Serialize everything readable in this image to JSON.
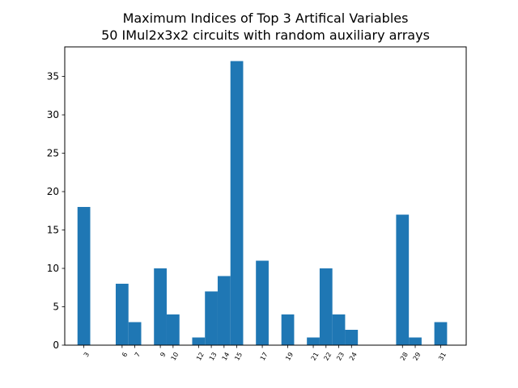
{
  "chart_data": {
    "type": "bar",
    "title_lines": [
      "Maximum Indices of Top 3 Artifical Variables",
      "50 IMul2x3x2 circuits with random auxiliary arrays"
    ],
    "xlabel": "",
    "ylabel": "",
    "x_tick_labels": [
      "3",
      "6",
      "7",
      "9",
      "10",
      "12",
      "13",
      "14",
      "15",
      "17",
      "19",
      "21",
      "22",
      "23",
      "24",
      "28",
      "29",
      "31"
    ],
    "values": [
      18,
      8,
      3,
      10,
      4,
      1,
      7,
      9,
      37,
      11,
      4,
      1,
      10,
      4,
      2,
      17,
      1,
      3
    ],
    "xlim": [
      1.5,
      33.0
    ],
    "ylim": [
      0,
      38.85
    ],
    "y_ticks": [
      0,
      5,
      10,
      15,
      20,
      25,
      30,
      35
    ],
    "bar_width": 1.0,
    "grid": false,
    "legend": "none",
    "bar_color": "#1f77b4"
  }
}
